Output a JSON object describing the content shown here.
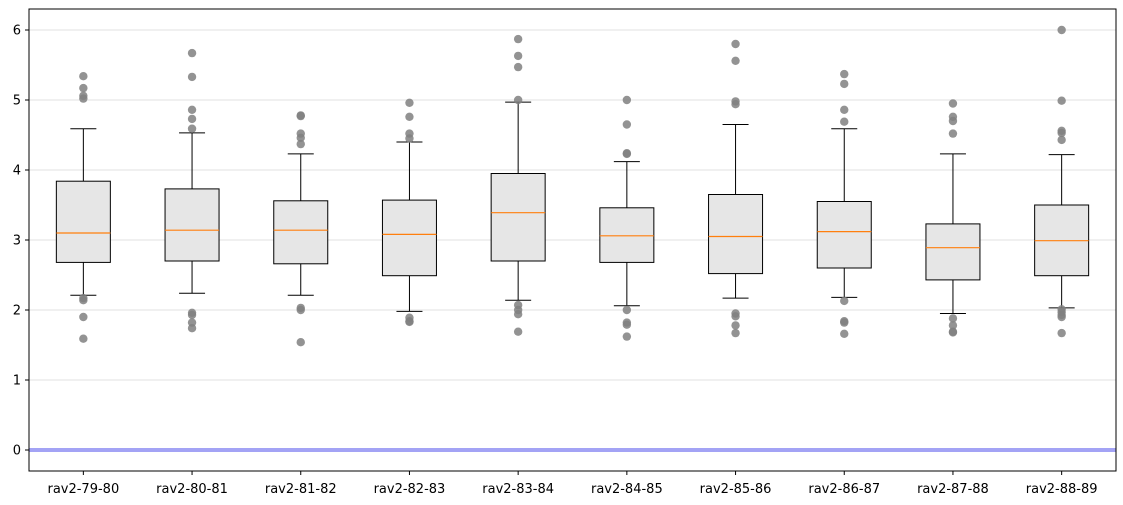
{
  "chart_data": {
    "type": "box",
    "title": "",
    "xlabel": "",
    "ylabel": "",
    "ylim": [
      -0.3,
      6.3
    ],
    "yticks": [
      0,
      1,
      2,
      3,
      4,
      5,
      6
    ],
    "ytick_labels": [
      "0",
      "1",
      "2",
      "3",
      "4",
      "5",
      "6"
    ],
    "grid": "horizontal",
    "reference_line": {
      "y": 0,
      "color": "#a3a3f5"
    },
    "colors": {
      "box_fill": "#e6e6e6",
      "median": "#ff7f0e",
      "outlier": "#808080",
      "grid": "#ebebeb"
    },
    "categories": [
      "rav2-79-80",
      "rav2-80-81",
      "rav2-81-82",
      "rav2-82-83",
      "rav2-83-84",
      "rav2-84-85",
      "rav2-85-86",
      "rav2-86-87",
      "rav2-87-88",
      "rav2-88-89"
    ],
    "boxes": [
      {
        "q1": 2.68,
        "median": 3.1,
        "q3": 3.84,
        "whisker_low": 2.21,
        "whisker_high": 4.59,
        "outliers": [
          5.34,
          5.17,
          5.06,
          5.02,
          2.17,
          2.14,
          1.9,
          1.59
        ]
      },
      {
        "q1": 2.7,
        "median": 3.14,
        "q3": 3.73,
        "whisker_low": 2.24,
        "whisker_high": 4.53,
        "outliers": [
          5.67,
          5.33,
          4.86,
          4.73,
          4.59,
          1.96,
          1.93,
          1.82,
          1.74
        ]
      },
      {
        "q1": 2.66,
        "median": 3.14,
        "q3": 3.56,
        "whisker_low": 2.21,
        "whisker_high": 4.23,
        "outliers": [
          4.78,
          4.77,
          4.52,
          4.46,
          4.37,
          2.03,
          2.0,
          1.54
        ]
      },
      {
        "q1": 2.49,
        "median": 3.08,
        "q3": 3.57,
        "whisker_low": 1.98,
        "whisker_high": 4.4,
        "outliers": [
          4.96,
          4.76,
          4.52,
          4.45,
          1.89,
          1.84,
          1.83
        ]
      },
      {
        "q1": 2.7,
        "median": 3.39,
        "q3": 3.95,
        "whisker_low": 2.14,
        "whisker_high": 4.97,
        "outliers": [
          5.87,
          5.63,
          5.47,
          5.0,
          2.07,
          2.0,
          1.94,
          1.69
        ]
      },
      {
        "q1": 2.68,
        "median": 3.06,
        "q3": 3.46,
        "whisker_low": 2.06,
        "whisker_high": 4.12,
        "outliers": [
          5.0,
          4.65,
          4.24,
          4.23,
          2.0,
          1.82,
          1.79,
          1.62
        ]
      },
      {
        "q1": 2.52,
        "median": 3.05,
        "q3": 3.65,
        "whisker_low": 2.17,
        "whisker_high": 4.65,
        "outliers": [
          5.8,
          5.56,
          4.98,
          4.94,
          1.95,
          1.91,
          1.78,
          1.67
        ]
      },
      {
        "q1": 2.6,
        "median": 3.12,
        "q3": 3.55,
        "whisker_low": 2.18,
        "whisker_high": 4.59,
        "outliers": [
          5.37,
          5.23,
          4.86,
          4.69,
          2.13,
          1.84,
          1.82,
          1.66
        ]
      },
      {
        "q1": 2.43,
        "median": 2.89,
        "q3": 3.23,
        "whisker_low": 1.95,
        "whisker_high": 4.23,
        "outliers": [
          4.95,
          4.76,
          4.7,
          4.52,
          1.88,
          1.78,
          1.69,
          1.68
        ]
      },
      {
        "q1": 2.49,
        "median": 2.99,
        "q3": 3.5,
        "whisker_low": 2.03,
        "whisker_high": 4.22,
        "outliers": [
          6.0,
          4.99,
          4.56,
          4.53,
          4.43,
          2.01,
          1.97,
          1.93,
          1.9,
          1.67
        ]
      }
    ]
  }
}
